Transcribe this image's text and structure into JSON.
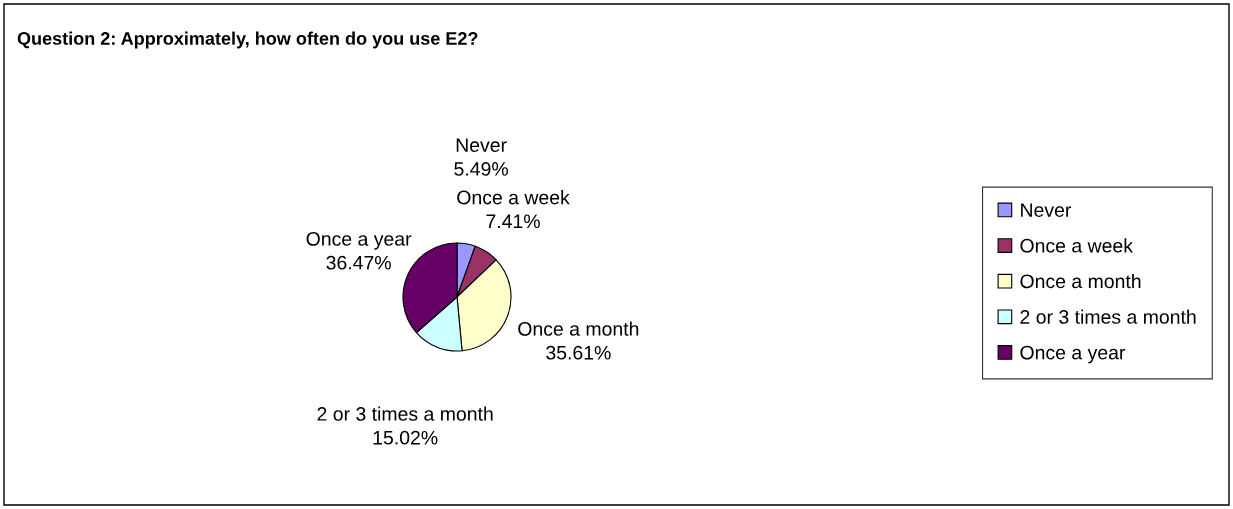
{
  "chart_data": {
    "type": "pie",
    "title": "Question 2: Approximately, how often do you use E2?",
    "categories": [
      "Never",
      "Once a week",
      "Once a month",
      "2 or 3 times a month",
      "Once a year"
    ],
    "values": [
      5.49,
      7.41,
      35.61,
      15.02,
      36.47
    ],
    "colors": [
      "#9999ff",
      "#993366",
      "#ffffcc",
      "#ccffff",
      "#660066"
    ],
    "value_labels": [
      "5.49%",
      "7.41%",
      "35.61%",
      "15.02%",
      "36.47%"
    ],
    "legend": "right"
  }
}
